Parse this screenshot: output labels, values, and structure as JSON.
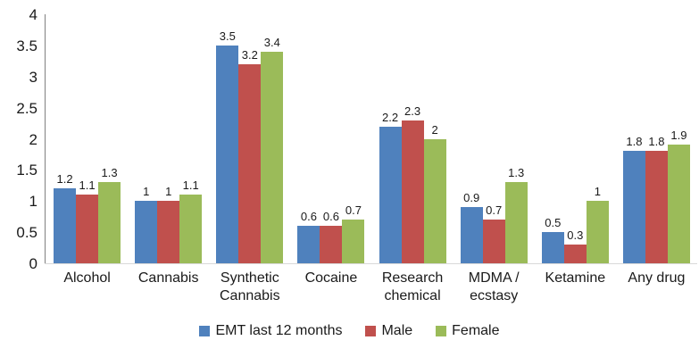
{
  "chart_data": {
    "type": "bar",
    "title": "",
    "categories": [
      "Alcohol",
      "Cannabis",
      "Synthetic Cannabis",
      "Cocaine",
      "Research chemical",
      "MDMA / ecstasy",
      "Ketamine",
      "Any drug"
    ],
    "series": [
      {
        "name": "EMT last 12 months",
        "color": "#4F81BD",
        "values": [
          1.2,
          1.0,
          3.5,
          0.6,
          2.2,
          0.9,
          0.5,
          1.8
        ]
      },
      {
        "name": "Male",
        "color": "#C0504D",
        "values": [
          1.1,
          1.0,
          3.2,
          0.6,
          2.3,
          0.7,
          0.3,
          1.8
        ]
      },
      {
        "name": "Female",
        "color": "#9BBB59",
        "values": [
          1.3,
          1.1,
          3.4,
          0.7,
          2.0,
          1.3,
          1.0,
          1.9
        ]
      }
    ],
    "data_labels": [
      [
        "1.2",
        "1",
        "3.5",
        "0.6",
        "2.2",
        "0.9",
        "0.5",
        "1.8"
      ],
      [
        "1.1",
        "1",
        "3.2",
        "0.6",
        "2.3",
        "0.7",
        "0.3",
        "1.8"
      ],
      [
        "1.3",
        "1.1",
        "3.4",
        "0.7",
        "2",
        "1.3",
        "1",
        "1.9"
      ]
    ],
    "xlabel": "",
    "ylabel": "",
    "ylim": [
      0,
      4
    ],
    "yticks": [
      "4",
      "3.5",
      "3",
      "2.5",
      "2",
      "1.5",
      "1",
      "0.5",
      "0"
    ],
    "grid": false,
    "legend_position": "bottom"
  },
  "colors": {
    "axis_line": "#808080",
    "baseline": "#d9d9d9",
    "text": "#1a1a1a"
  }
}
